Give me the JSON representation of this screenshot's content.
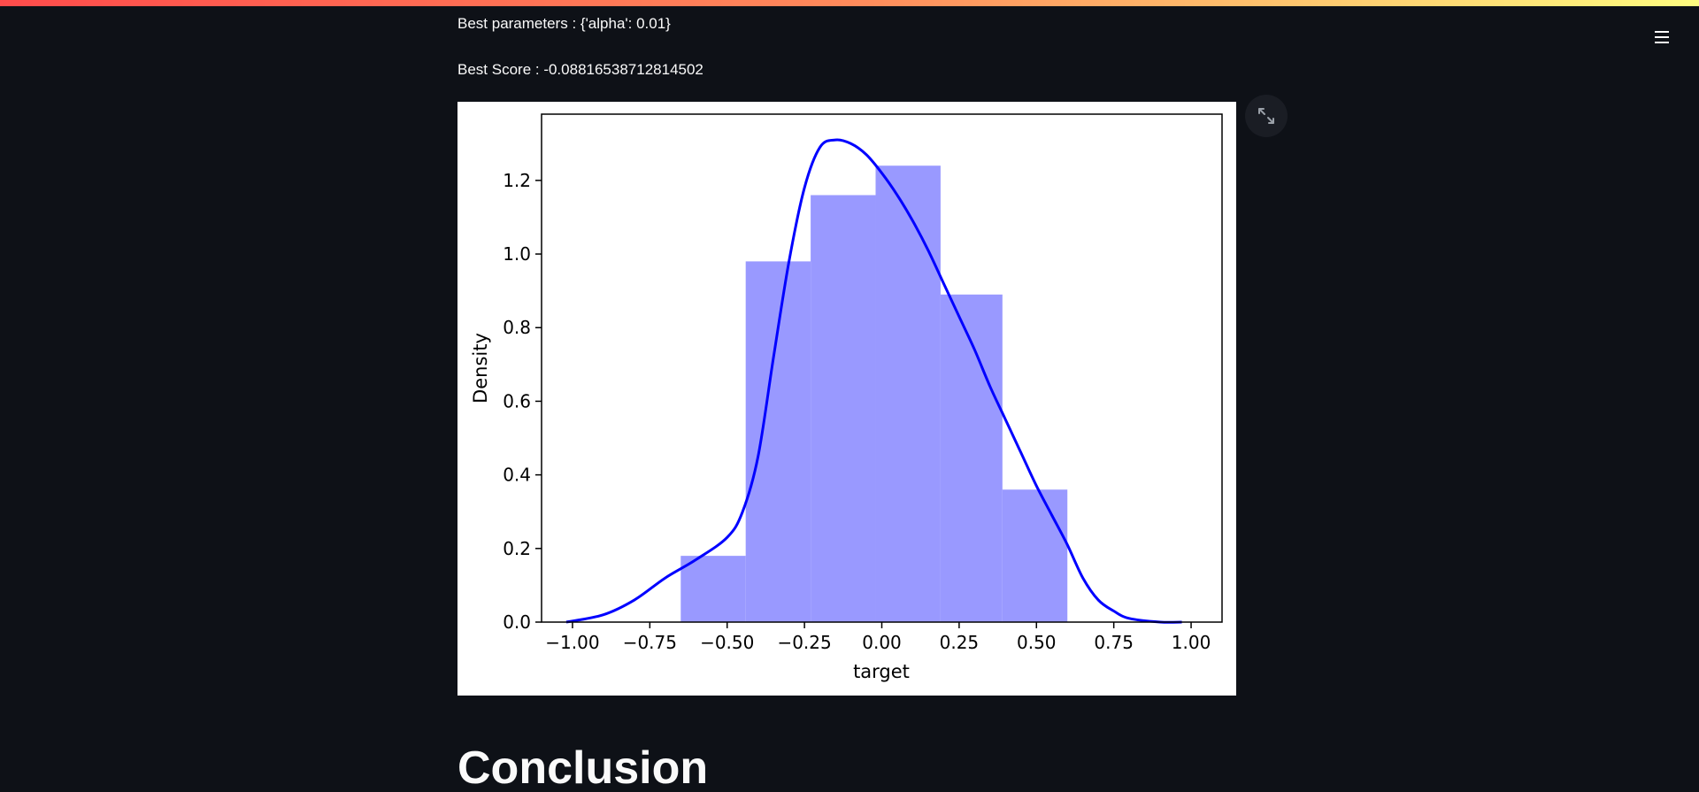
{
  "app": {
    "menu_icon": "hamburger-menu-icon",
    "fullscreen_icon": "expand-arrows-icon",
    "accent_gradient": [
      "#ff4b4b",
      "#fffd80"
    ],
    "background": "#0e1117"
  },
  "content": {
    "best_parameters_text": "Best parameters : {'alpha': 0.01}",
    "best_score_text": "Best Score : -0.08816538712814502",
    "heading": "Conclusion"
  },
  "chart_data": {
    "type": "bar",
    "xlabel": "target",
    "ylabel": "Density",
    "xlim": [
      -1.1,
      1.1
    ],
    "ylim": [
      0,
      1.38
    ],
    "xticks": [
      -1.0,
      -0.75,
      -0.5,
      -0.25,
      0.0,
      0.25,
      0.5,
      0.75,
      1.0
    ],
    "xtick_labels": [
      "−1.00",
      "−0.75",
      "−0.50",
      "−0.25",
      "0.00",
      "0.25",
      "0.50",
      "0.75",
      "1.00"
    ],
    "yticks": [
      0.0,
      0.2,
      0.4,
      0.6,
      0.8,
      1.0,
      1.2
    ],
    "ytick_labels": [
      "0.0",
      "0.2",
      "0.4",
      "0.6",
      "0.8",
      "1.0",
      "1.2"
    ],
    "histogram": {
      "bin_edges": [
        -0.65,
        -0.44,
        -0.23,
        -0.02,
        0.19,
        0.39,
        0.6
      ],
      "values": [
        0.18,
        0.98,
        1.16,
        1.24,
        0.89,
        0.36
      ],
      "color": "#9999ff"
    },
    "kde": {
      "color": "#0000ff",
      "x": [
        -1.02,
        -0.9,
        -0.8,
        -0.7,
        -0.6,
        -0.5,
        -0.45,
        -0.4,
        -0.35,
        -0.3,
        -0.25,
        -0.2,
        -0.15,
        -0.1,
        -0.05,
        0.0,
        0.05,
        0.1,
        0.15,
        0.2,
        0.25,
        0.3,
        0.35,
        0.4,
        0.45,
        0.5,
        0.55,
        0.6,
        0.65,
        0.7,
        0.75,
        0.8,
        0.9,
        0.97
      ],
      "y": [
        0.0,
        0.02,
        0.06,
        0.12,
        0.17,
        0.23,
        0.3,
        0.45,
        0.72,
        0.98,
        1.18,
        1.29,
        1.31,
        1.3,
        1.27,
        1.22,
        1.16,
        1.09,
        1.01,
        0.92,
        0.83,
        0.74,
        0.64,
        0.55,
        0.46,
        0.37,
        0.29,
        0.21,
        0.12,
        0.06,
        0.03,
        0.01,
        0.0,
        0.0
      ]
    }
  }
}
